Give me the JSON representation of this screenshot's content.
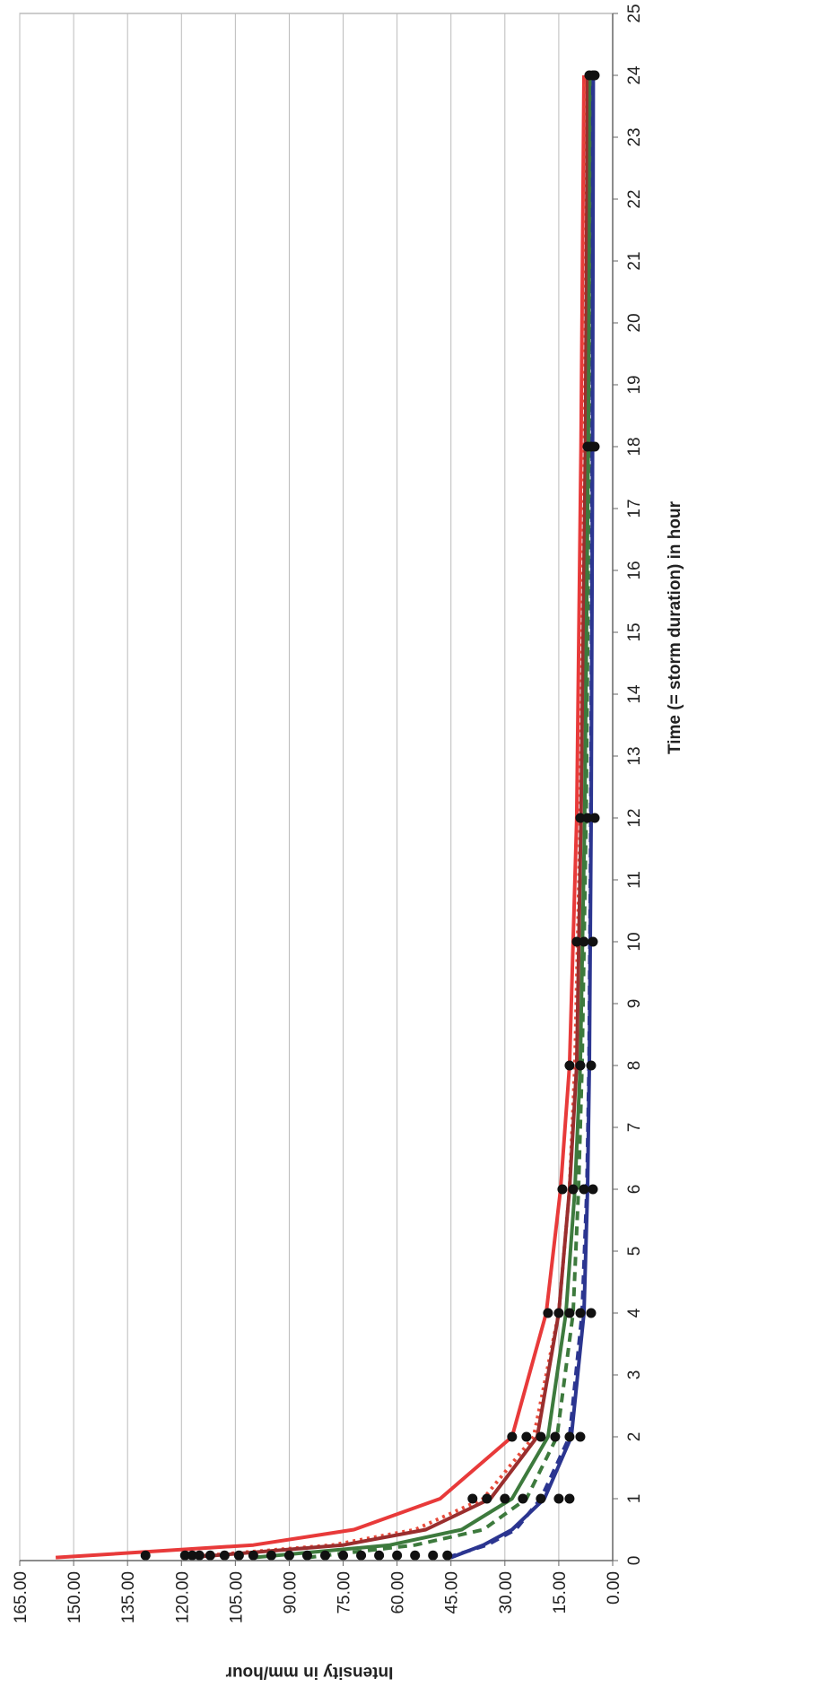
{
  "chart_data": {
    "type": "line",
    "x_label": "Time (= storm duration) in hour",
    "y_label": "Intensity in mm/hour",
    "xlim": [
      0,
      25
    ],
    "xticks": [
      0,
      1,
      2,
      3,
      4,
      5,
      6,
      7,
      8,
      9,
      10,
      11,
      12,
      13,
      14,
      15,
      16,
      17,
      18,
      19,
      20,
      21,
      22,
      23,
      24,
      25
    ],
    "ylim": [
      0,
      165
    ],
    "yticks": [
      {
        "value": 0,
        "label": "0.00"
      },
      {
        "value": 15,
        "label": "15.00"
      },
      {
        "value": 30,
        "label": "30.00"
      },
      {
        "value": 45,
        "label": "45.00"
      },
      {
        "value": 60,
        "label": "60.00"
      },
      {
        "value": 75,
        "label": "75.00"
      },
      {
        "value": 90,
        "label": "90.00"
      },
      {
        "value": 105,
        "label": "105.00"
      },
      {
        "value": 120,
        "label": "120.00"
      },
      {
        "value": 135,
        "label": "135.00"
      },
      {
        "value": 150,
        "label": "150.00"
      },
      {
        "value": 165,
        "label": "165.00"
      }
    ],
    "grid": true,
    "series": [
      {
        "color": "#e83a3a",
        "style": "solid",
        "x": [
          0.05,
          0.25,
          0.5,
          1,
          2,
          4,
          6,
          8,
          12,
          18,
          24
        ],
        "values": [
          155,
          100,
          72,
          48,
          28,
          18.5,
          14.5,
          12,
          10,
          8.8,
          8
        ]
      },
      {
        "color": "#e84a3a",
        "style": "dotted",
        "x": [
          0.05,
          0.25,
          0.5,
          1,
          2,
          4,
          6,
          8,
          12,
          18,
          24
        ],
        "values": [
          120,
          78,
          55,
          36,
          22,
          15,
          12,
          10.5,
          9,
          8,
          7.5
        ]
      },
      {
        "color": "#9a2e2e",
        "style": "solid",
        "x": [
          0.05,
          0.25,
          0.5,
          1,
          2,
          4,
          6,
          8,
          12,
          18,
          24
        ],
        "values": [
          118,
          75,
          52,
          34,
          21,
          15,
          12,
          10,
          8.8,
          7.6,
          7
        ]
      },
      {
        "color": "#3d7a3d",
        "style": "solid",
        "x": [
          0.05,
          0.25,
          0.5,
          1,
          2,
          4,
          6,
          8,
          12,
          18,
          24
        ],
        "values": [
          100,
          62,
          42,
          28,
          18,
          13,
          10.5,
          9,
          7.8,
          6.8,
          6.2
        ]
      },
      {
        "color": "#3d7a3d",
        "style": "dashed",
        "x": [
          0.05,
          0.25,
          0.5,
          1,
          2,
          4,
          6,
          8,
          12,
          18,
          24
        ],
        "values": [
          85,
          55,
          36,
          24,
          15.5,
          11,
          9.5,
          8.5,
          7.4,
          6.5,
          6
        ]
      },
      {
        "color": "#2b3590",
        "style": "solid",
        "x": [
          0.05,
          0.25,
          0.5,
          1,
          2,
          4,
          6,
          8,
          12,
          18,
          24
        ],
        "values": [
          45,
          36,
          28,
          19,
          11.5,
          8,
          7,
          6.5,
          6,
          5.6,
          5.4
        ]
      },
      {
        "color": "#2b3590",
        "style": "dashed",
        "x": [
          0.05,
          0.25,
          0.5,
          1,
          2,
          4,
          6,
          8,
          12,
          18,
          24
        ],
        "values": [
          46,
          35,
          27,
          20,
          12,
          8.5,
          7.2,
          6.6,
          6.1,
          5.7,
          5.5
        ]
      },
      {
        "color": "#111111",
        "style": "markers",
        "x": [
          0.083,
          0.083,
          0.083,
          0.083,
          0.083,
          0.083,
          0.083,
          0.083,
          0.083,
          0.083,
          0.083,
          0.083,
          0.083,
          0.083,
          0.083,
          0.083,
          0.083,
          0.083,
          0.083,
          1,
          1,
          1,
          1,
          1,
          1,
          1,
          2,
          2,
          2,
          2,
          2,
          2,
          4,
          4,
          4,
          4,
          4,
          6,
          6,
          6,
          6,
          8,
          8,
          8,
          10,
          10,
          10,
          12,
          12,
          12,
          18,
          18,
          18,
          24,
          24,
          24
        ],
        "values": [
          130,
          119,
          117,
          115,
          112,
          108,
          104,
          100,
          95,
          90,
          85,
          80,
          75,
          70,
          65,
          60,
          55,
          50,
          46,
          39,
          35,
          30,
          25,
          20,
          15,
          12,
          28,
          24,
          20,
          16,
          12,
          9,
          18,
          15,
          12,
          9,
          6,
          14,
          11,
          8,
          5.5,
          12,
          9,
          6,
          10,
          8,
          5.5,
          9,
          7,
          5,
          7,
          6,
          5,
          6.5,
          5.5,
          5
        ]
      }
    ]
  }
}
